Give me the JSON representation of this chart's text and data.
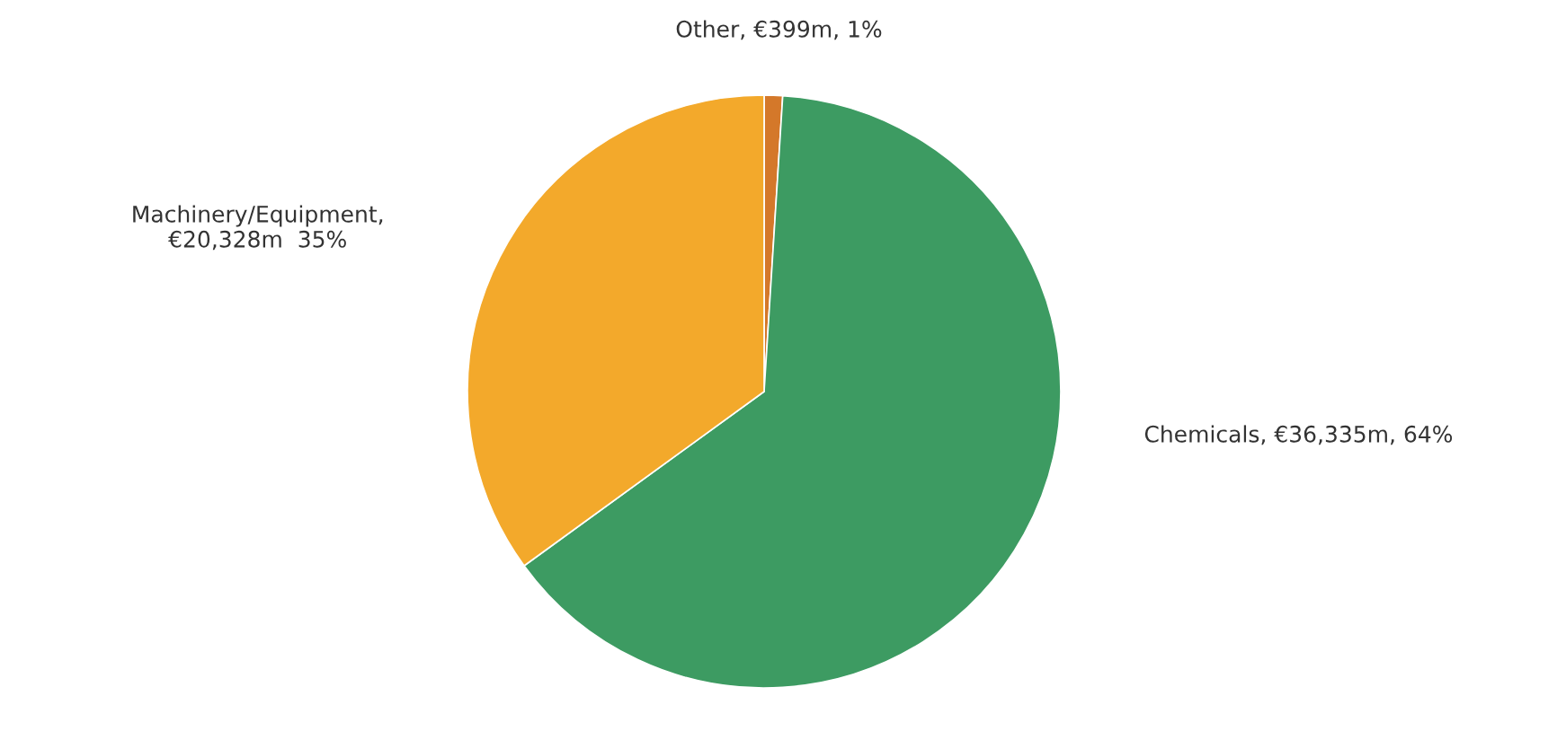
{
  "chart_data": {
    "type": "pie",
    "categories": [
      "Other, €399m, 1%",
      "Chemicals, €36,335m, 64%",
      "Machinery/Equipment, €20,328m  35%"
    ],
    "values": [
      1,
      64,
      35
    ],
    "colors": [
      "#d4782a",
      "#3d9b62",
      "#f3a92b"
    ]
  }
}
